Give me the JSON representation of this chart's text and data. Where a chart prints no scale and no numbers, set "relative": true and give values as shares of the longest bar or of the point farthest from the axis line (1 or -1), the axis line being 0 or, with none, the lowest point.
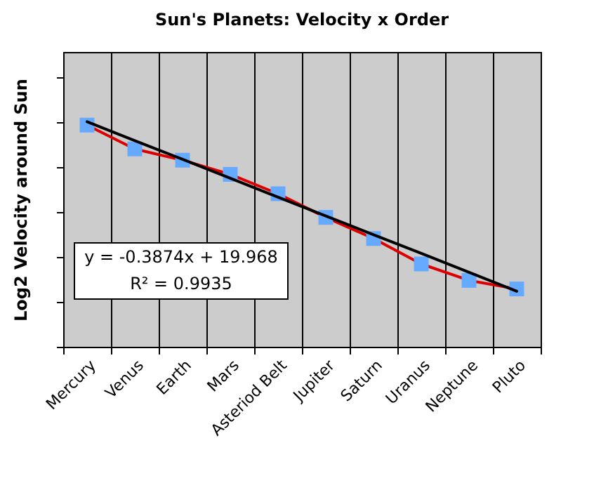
{
  "chart_data": {
    "type": "line",
    "title": "Sun's Planets: Velocity x Order",
    "ylabel": "Log2 Velocity around Sun",
    "categories": [
      "Mercury",
      "Venus",
      "Earth",
      "Mars",
      "Asteriod Belt",
      "Jupiter",
      "Saturn",
      "Uranus",
      "Neptune",
      "Pluto"
    ],
    "relative": true,
    "series": [
      {
        "color": "#dd0000",
        "colors": [
          "#66aaff",
          "#66aaff",
          "#66aaff",
          "#66aaff",
          "#66aaff",
          "#66aaff",
          "#66aaff",
          "#66aaff",
          "#66aaff",
          "#66aaff"
        ],
        "marker": "square",
        "values": [
          0.985,
          0.879,
          0.829,
          0.766,
          0.68,
          0.575,
          0.481,
          0.368,
          0.295,
          0.257
        ]
      },
      {
        "color": "#000000",
        "marker": "none",
        "values": [
          1,
          0.916,
          0.833,
          0.749,
          0.665,
          0.581,
          0.498,
          0.415,
          0.331,
          0.247
        ]
      }
    ],
    "annotations": [
      "y = -0.3874x + 19.968",
      "R² = 0.9935"
    ],
    "grid": "x",
    "legend": false,
    "tick_labels": "x"
  }
}
